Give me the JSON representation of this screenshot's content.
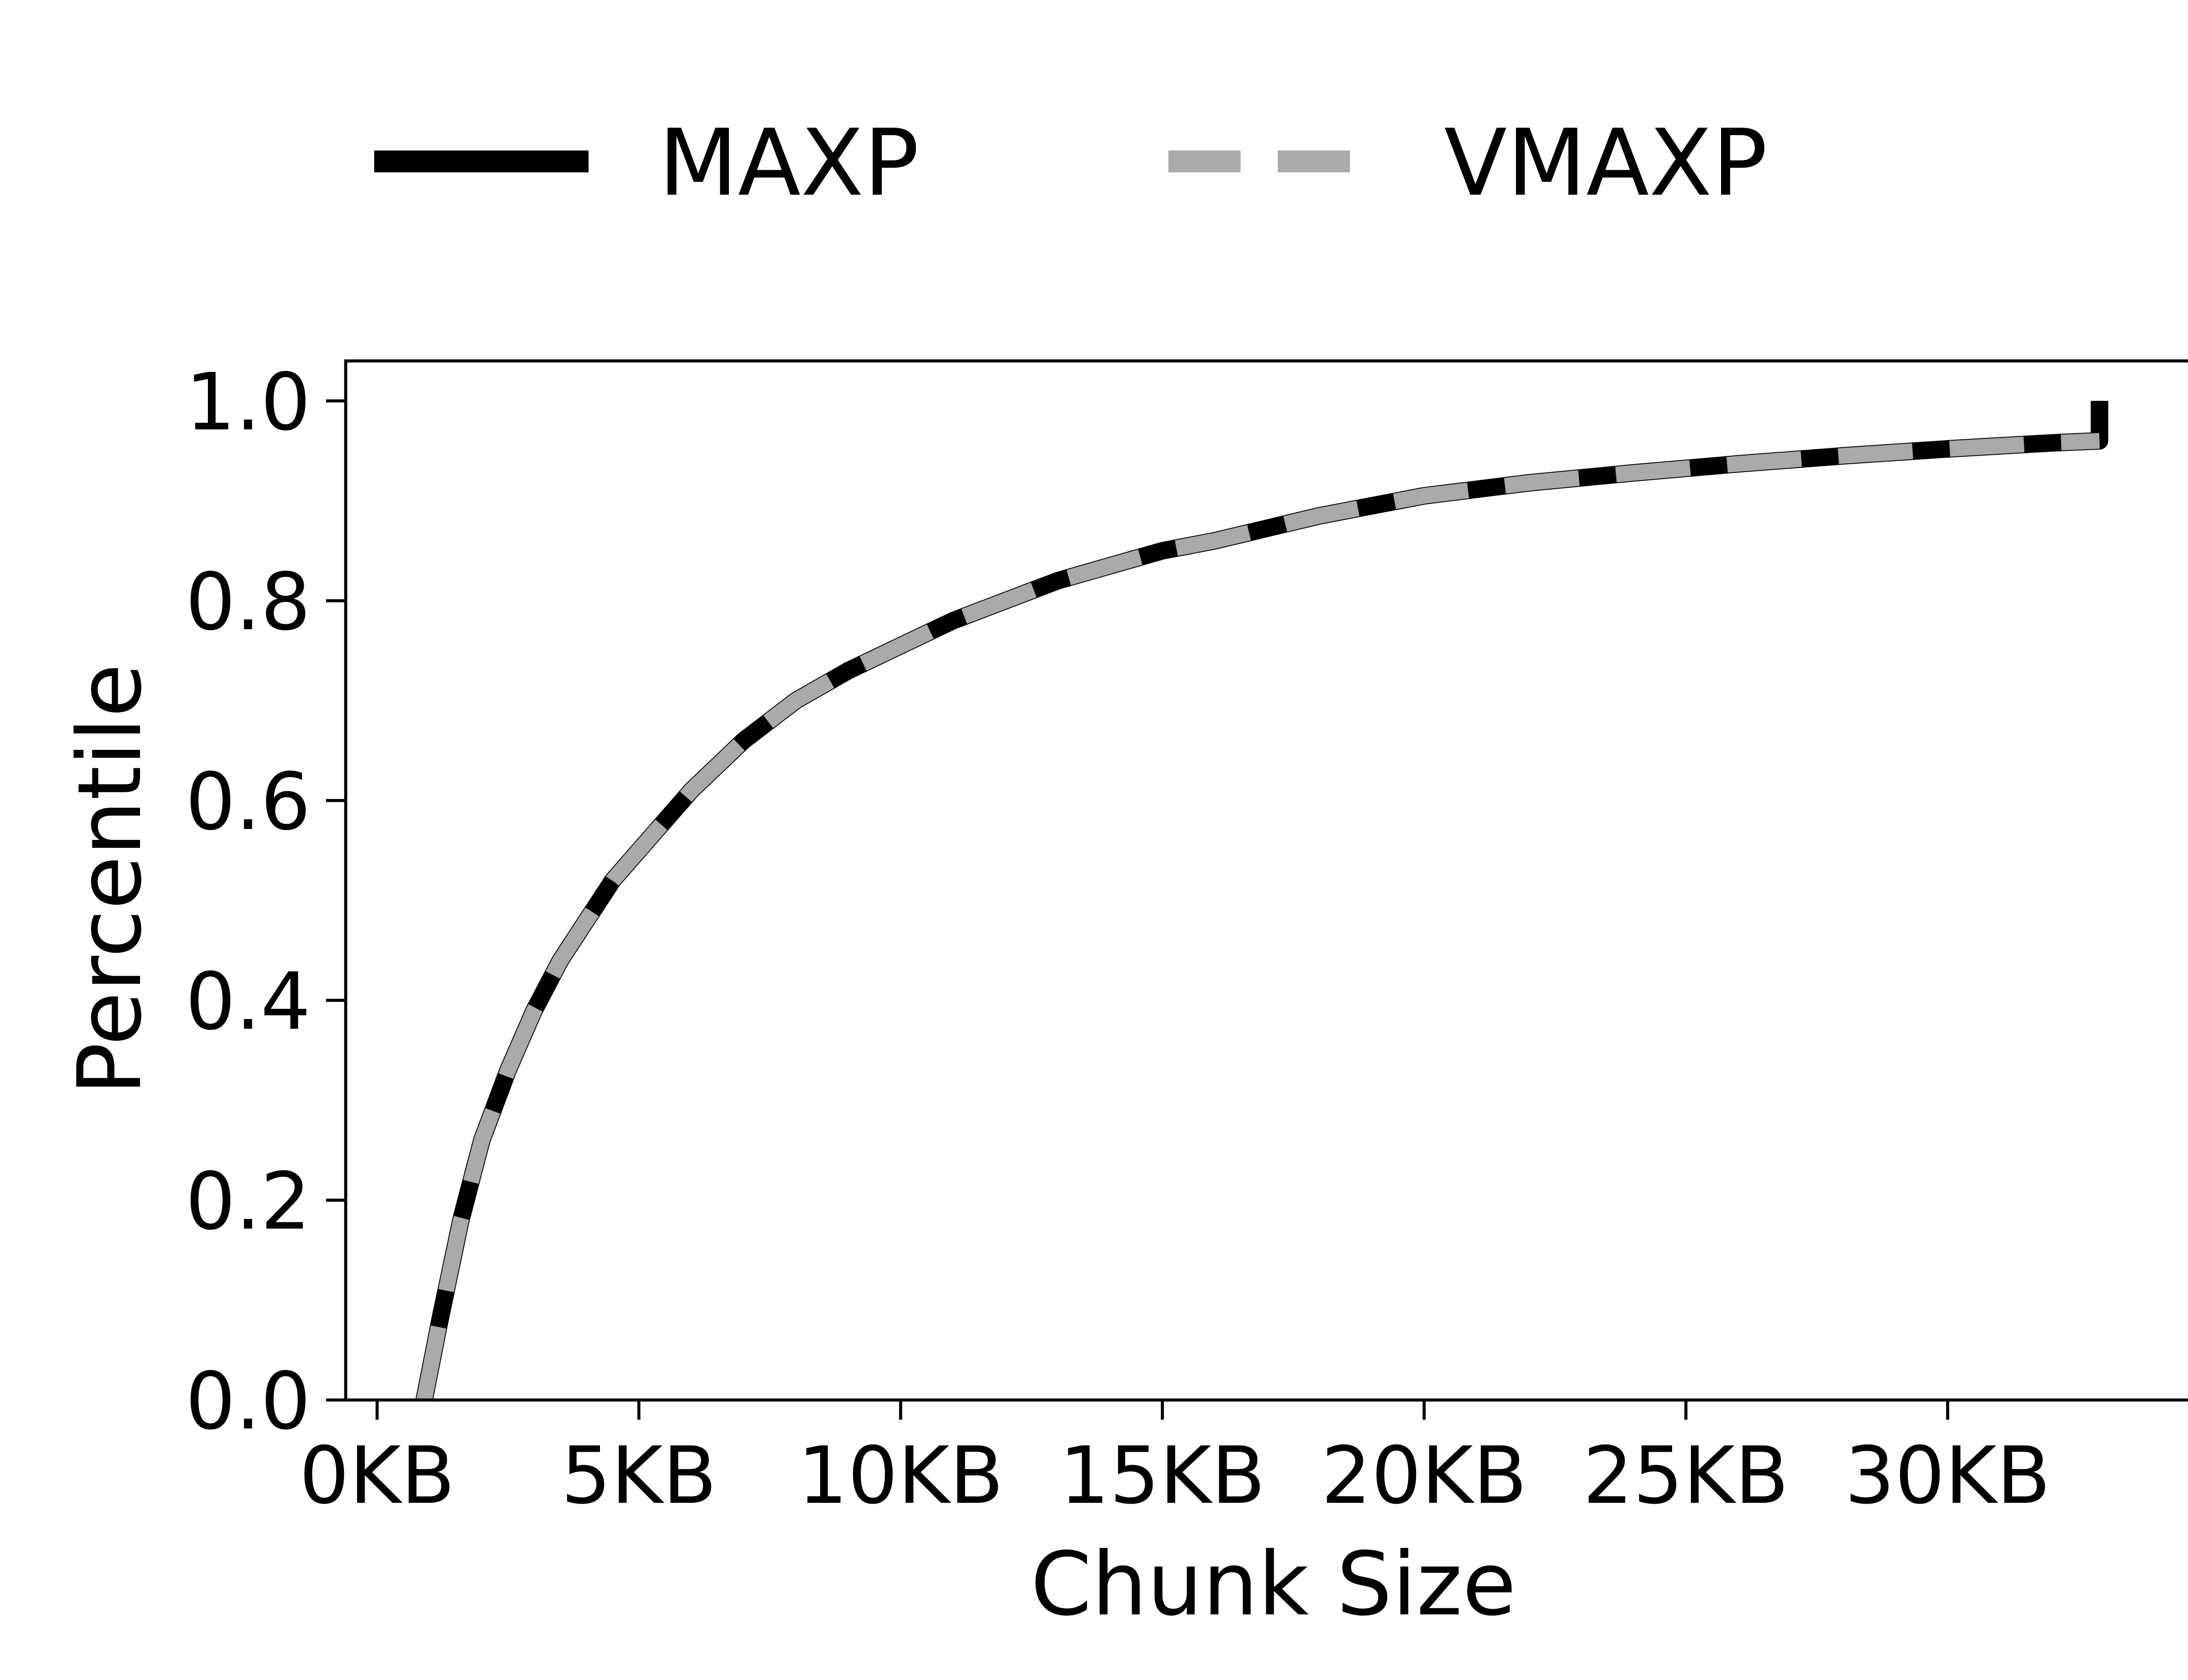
{
  "chart_data": {
    "type": "line",
    "xlabel": "Chunk Size",
    "ylabel": "Percentile",
    "xlim": [
      -0.6,
      34.8
    ],
    "ylim": [
      0.0,
      1.04
    ],
    "xticks": [
      0,
      5,
      10,
      15,
      20,
      25,
      30
    ],
    "xtick_labels": [
      "0KB",
      "5KB",
      "10KB",
      "15KB",
      "20KB",
      "25KB",
      "30KB"
    ],
    "yticks": [
      0.0,
      0.2,
      0.4,
      0.6,
      0.8,
      1.0
    ],
    "ytick_labels": [
      "0.0",
      "0.2",
      "0.4",
      "0.6",
      "0.8",
      "1.0"
    ],
    "grid": false,
    "legend_position": "top",
    "series": [
      {
        "name": "MAXP",
        "color": "#000000",
        "style": "solid",
        "x": [
          0.9,
          1.2,
          1.6,
          2.0,
          2.5,
          3.0,
          3.5,
          4.0,
          4.5,
          5.0,
          6.0,
          7.0,
          8.0,
          9.0,
          10.0,
          11.0,
          12.0,
          13.0,
          14.0,
          15.0,
          16.0,
          18.0,
          20.0,
          22.0,
          24.0,
          26.0,
          28.0,
          30.0,
          31.0,
          32.0,
          32.9,
          32.9
        ],
        "y": [
          0.0,
          0.08,
          0.18,
          0.26,
          0.33,
          0.39,
          0.44,
          0.48,
          0.52,
          0.55,
          0.61,
          0.66,
          0.7,
          0.73,
          0.755,
          0.78,
          0.8,
          0.82,
          0.835,
          0.85,
          0.86,
          0.885,
          0.905,
          0.918,
          0.928,
          0.937,
          0.945,
          0.952,
          0.955,
          0.958,
          0.96,
          1.0
        ]
      },
      {
        "name": "VMAXP",
        "color": "#aaaaaa",
        "style": "dashed",
        "x": [
          0.9,
          1.2,
          1.6,
          2.0,
          2.5,
          3.0,
          3.5,
          4.0,
          4.5,
          5.0,
          6.0,
          7.0,
          8.0,
          9.0,
          10.0,
          11.0,
          12.0,
          13.0,
          14.0,
          15.0,
          16.0,
          18.0,
          20.0,
          22.0,
          24.0,
          26.0,
          28.0,
          30.0,
          31.0,
          32.0,
          32.9
        ],
        "y": [
          0.0,
          0.08,
          0.18,
          0.26,
          0.33,
          0.39,
          0.44,
          0.48,
          0.52,
          0.55,
          0.61,
          0.66,
          0.7,
          0.73,
          0.755,
          0.78,
          0.8,
          0.82,
          0.835,
          0.85,
          0.86,
          0.885,
          0.905,
          0.918,
          0.928,
          0.937,
          0.945,
          0.952,
          0.955,
          0.958,
          0.96
        ]
      }
    ]
  }
}
